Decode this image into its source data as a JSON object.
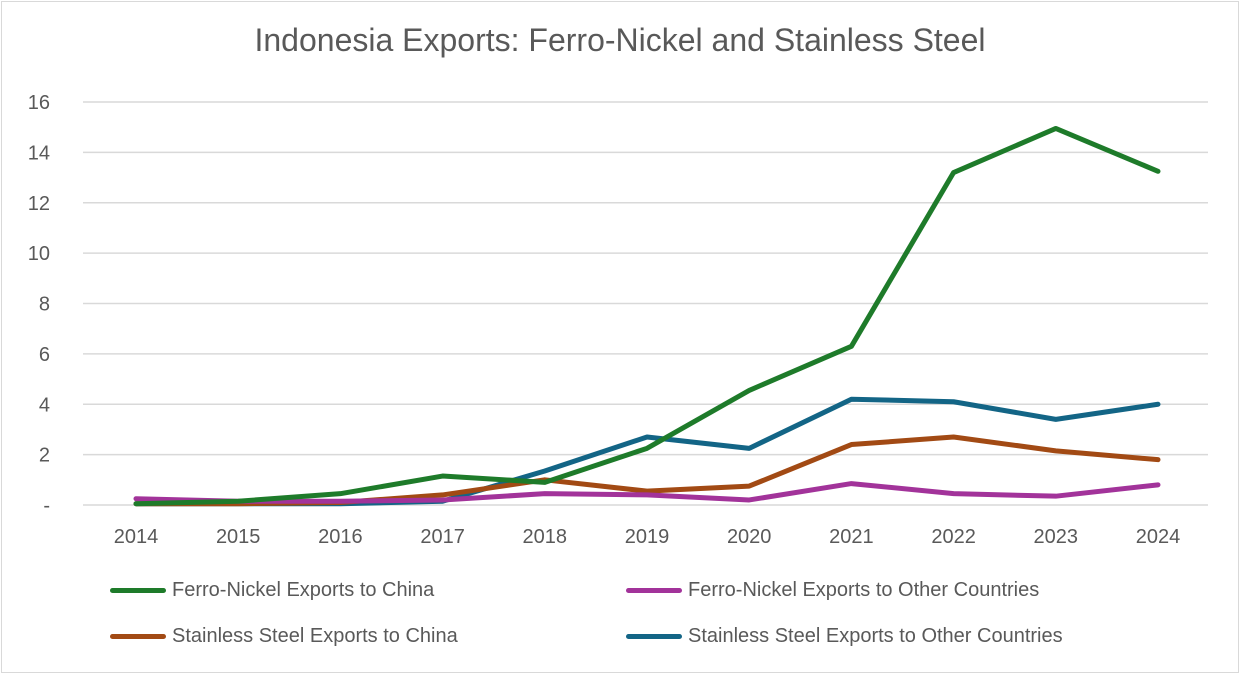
{
  "chart_data": {
    "type": "line",
    "title": "Indonesia Exports: Ferro-Nickel and Stainless Steel",
    "xlabel": "",
    "ylabel": "",
    "x": [
      "2014",
      "2015",
      "2016",
      "2017",
      "2018",
      "2019",
      "2020",
      "2021",
      "2022",
      "2023",
      "2024"
    ],
    "ylim": [
      0,
      16
    ],
    "yticks": [
      0,
      2,
      4,
      6,
      8,
      10,
      12,
      14,
      16
    ],
    "ytick_labels": [
      "-",
      "2",
      "4",
      "6",
      "8",
      "10",
      "12",
      "14",
      "16"
    ],
    "grid": true,
    "legend_position": "bottom",
    "series": [
      {
        "name": "Ferro-Nickel Exports to China",
        "color": "#1e7b2a",
        "values": [
          0.05,
          0.15,
          0.45,
          1.15,
          0.9,
          2.25,
          4.55,
          6.3,
          13.2,
          14.95,
          13.25
        ]
      },
      {
        "name": "Ferro-Nickel Exports to Other Countries",
        "color": "#a2339a",
        "values": [
          0.25,
          0.15,
          0.15,
          0.2,
          0.45,
          0.4,
          0.2,
          0.85,
          0.45,
          0.35,
          0.8
        ]
      },
      {
        "name": "Stainless Steel Exports to China",
        "color": "#a24a14",
        "values": [
          0.05,
          0.05,
          0.1,
          0.4,
          1.0,
          0.55,
          0.75,
          2.4,
          2.7,
          2.15,
          1.8
        ]
      },
      {
        "name": "Stainless Steel Exports to Other Countries",
        "color": "#136586",
        "values": [
          0.05,
          0.05,
          0.05,
          0.15,
          1.35,
          2.7,
          2.25,
          4.2,
          4.1,
          3.4,
          4.0
        ]
      }
    ]
  }
}
